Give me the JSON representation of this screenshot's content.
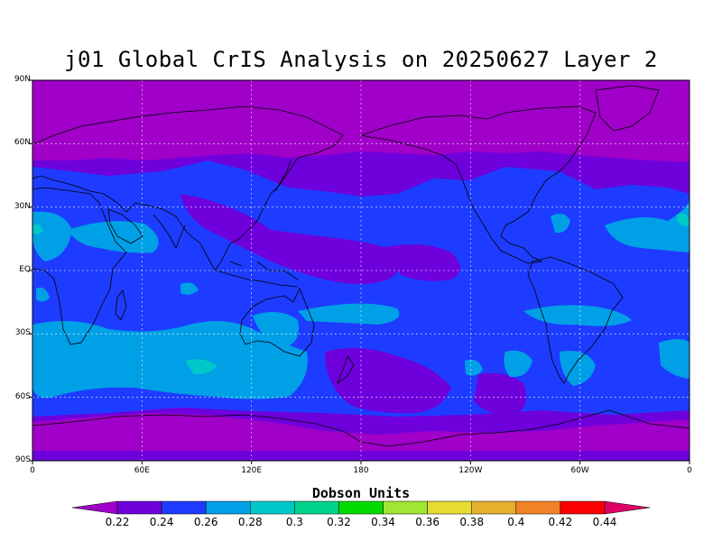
{
  "title": "j01 Global CrIS Analysis on 20250627 Layer 2",
  "lat_labels": [
    "90N",
    "60N",
    "30N",
    "EQ",
    "30S",
    "60S",
    "90S"
  ],
  "lon_labels": [
    "0",
    "60E",
    "120E",
    "180",
    "120W",
    "60W",
    "0"
  ],
  "colorbar": {
    "title": "Dobson Units",
    "labels": [
      "0.22",
      "0.24",
      "0.26",
      "0.28",
      "0.3",
      "0.32",
      "0.34",
      "0.36",
      "0.38",
      "0.4",
      "0.42",
      "0.44"
    ],
    "colors": [
      "#a000c8",
      "#6e00dc",
      "#1e3cff",
      "#00a0e6",
      "#00c8c8",
      "#00d28c",
      "#00dc00",
      "#a0e632",
      "#e6dc32",
      "#e6af2d",
      "#f08228",
      "#fa0000",
      "#dc0064"
    ]
  },
  "map": {
    "colors": {
      "polar": "#a000c8",
      "band": "#6e00dc",
      "main": "#1e3cff",
      "cyan": "#00a0e6",
      "teal": "#00c8c8"
    },
    "ranges": {
      "lat": [
        -90,
        90
      ],
      "lon": [
        0,
        360
      ]
    },
    "gridlines": true
  }
}
